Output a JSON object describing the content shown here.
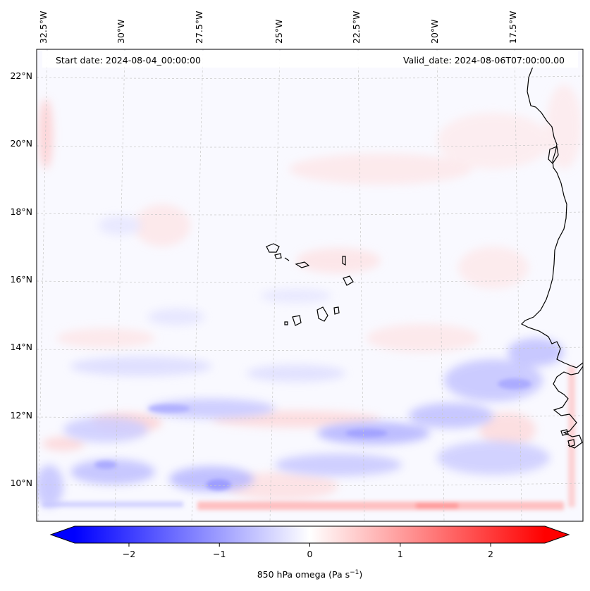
{
  "map": {
    "start_date": "Start date: 2024-08-04_00:00:00",
    "valid_date": "Valid_date: 2024-08-06T07:00:00.00",
    "longitude_labels": [
      "32.5°W",
      "30°W",
      "27.5°W",
      "25°W",
      "22.5°W",
      "20°W",
      "17.5°W"
    ],
    "latitude_labels": [
      "22°N",
      "20°N",
      "18°N",
      "16°N",
      "14°N",
      "12°N",
      "10°N"
    ],
    "variable": "850 hPa omega",
    "extent": {
      "lon_min": -33.0,
      "lon_max": -15.5,
      "lat_min": 8.8,
      "lat_max": 22.8
    }
  },
  "colorbar": {
    "label_prefix": "850 hPa omega (Pa s",
    "label_exp": "−1",
    "label_suffix": ")",
    "ticks": [
      {
        "value": -2,
        "label": "−2"
      },
      {
        "value": -1,
        "label": "−1"
      },
      {
        "value": 0,
        "label": "0"
      },
      {
        "value": 1,
        "label": "1"
      },
      {
        "value": 2,
        "label": "2"
      }
    ],
    "min": -2.6,
    "max": 2.6,
    "low_color": "#0000ff",
    "mid_color": "#ffffff",
    "high_color": "#ff0000"
  },
  "colors": {
    "coastline": "#000000",
    "gridline": "#c8c8c8",
    "map_background": "#f9f9ff"
  }
}
